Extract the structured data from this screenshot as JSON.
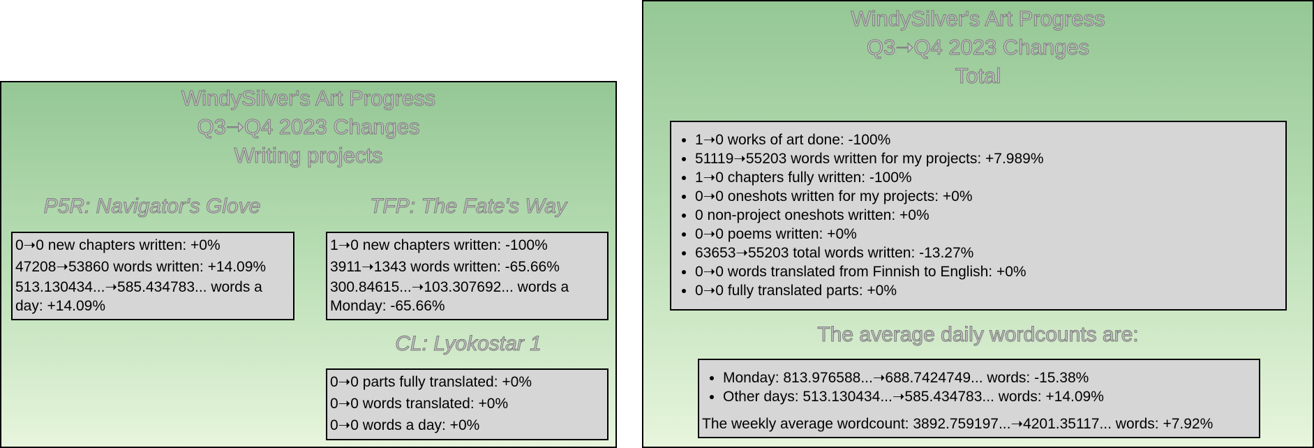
{
  "left": {
    "title_line1": "WindySilver's Art Progress",
    "title_line2": "Q3➝Q4 2023 Changes",
    "title_line3": "Writing projects",
    "p5r": {
      "heading": "P5R: Navigator's Glove",
      "lines": [
        "0➝0 new chapters written: +0%",
        "47208➝53860 words written: +14.09%",
        "513.130434...➝585.434783... words a day: +14.09%"
      ]
    },
    "tfp": {
      "heading": "TFP: The Fate's Way",
      "lines": [
        "1➝0 new chapters written: -100%",
        "3911➝1343 words written: -65.66%",
        "300.84615...➝103.307692... words a Monday: -65.66%"
      ]
    },
    "cl": {
      "heading": "CL: Lyokostar 1",
      "lines": [
        "0➝0 parts fully translated: +0%",
        "0➝0 words translated: +0%",
        "0➝0 words a day: +0%"
      ]
    }
  },
  "right": {
    "title_line1": "WindySilver's Art Progress",
    "title_line2": "Q3➝Q4 2023 Changes",
    "title_line3": "Total",
    "totals": [
      "1➝0 works of art done: -100%",
      "51119➝55203 words written for my projects: +7.989%",
      "1➝0 chapters fully written: -100%",
      "0➝0 oneshots written for my projects: +0%",
      "0 non-project oneshots written: +0%",
      "0➝0 poems written: +0%",
      "63653➝55203 total words written: -13.27%",
      "0➝0 words translated from Finnish to English: +0%",
      "0➝0 fully translated parts: +0%"
    ],
    "avg_heading": "The average daily wordcounts are:",
    "avg_items": [
      "Monday: 813.976588...➝688.7424749... words: -15.38%",
      "Other days: 513.130434...➝585.434783... words: +14.09%"
    ],
    "weekly": "The weekly average wordcount: 3892.759197...➝4201.35117... words: +7.92%"
  }
}
